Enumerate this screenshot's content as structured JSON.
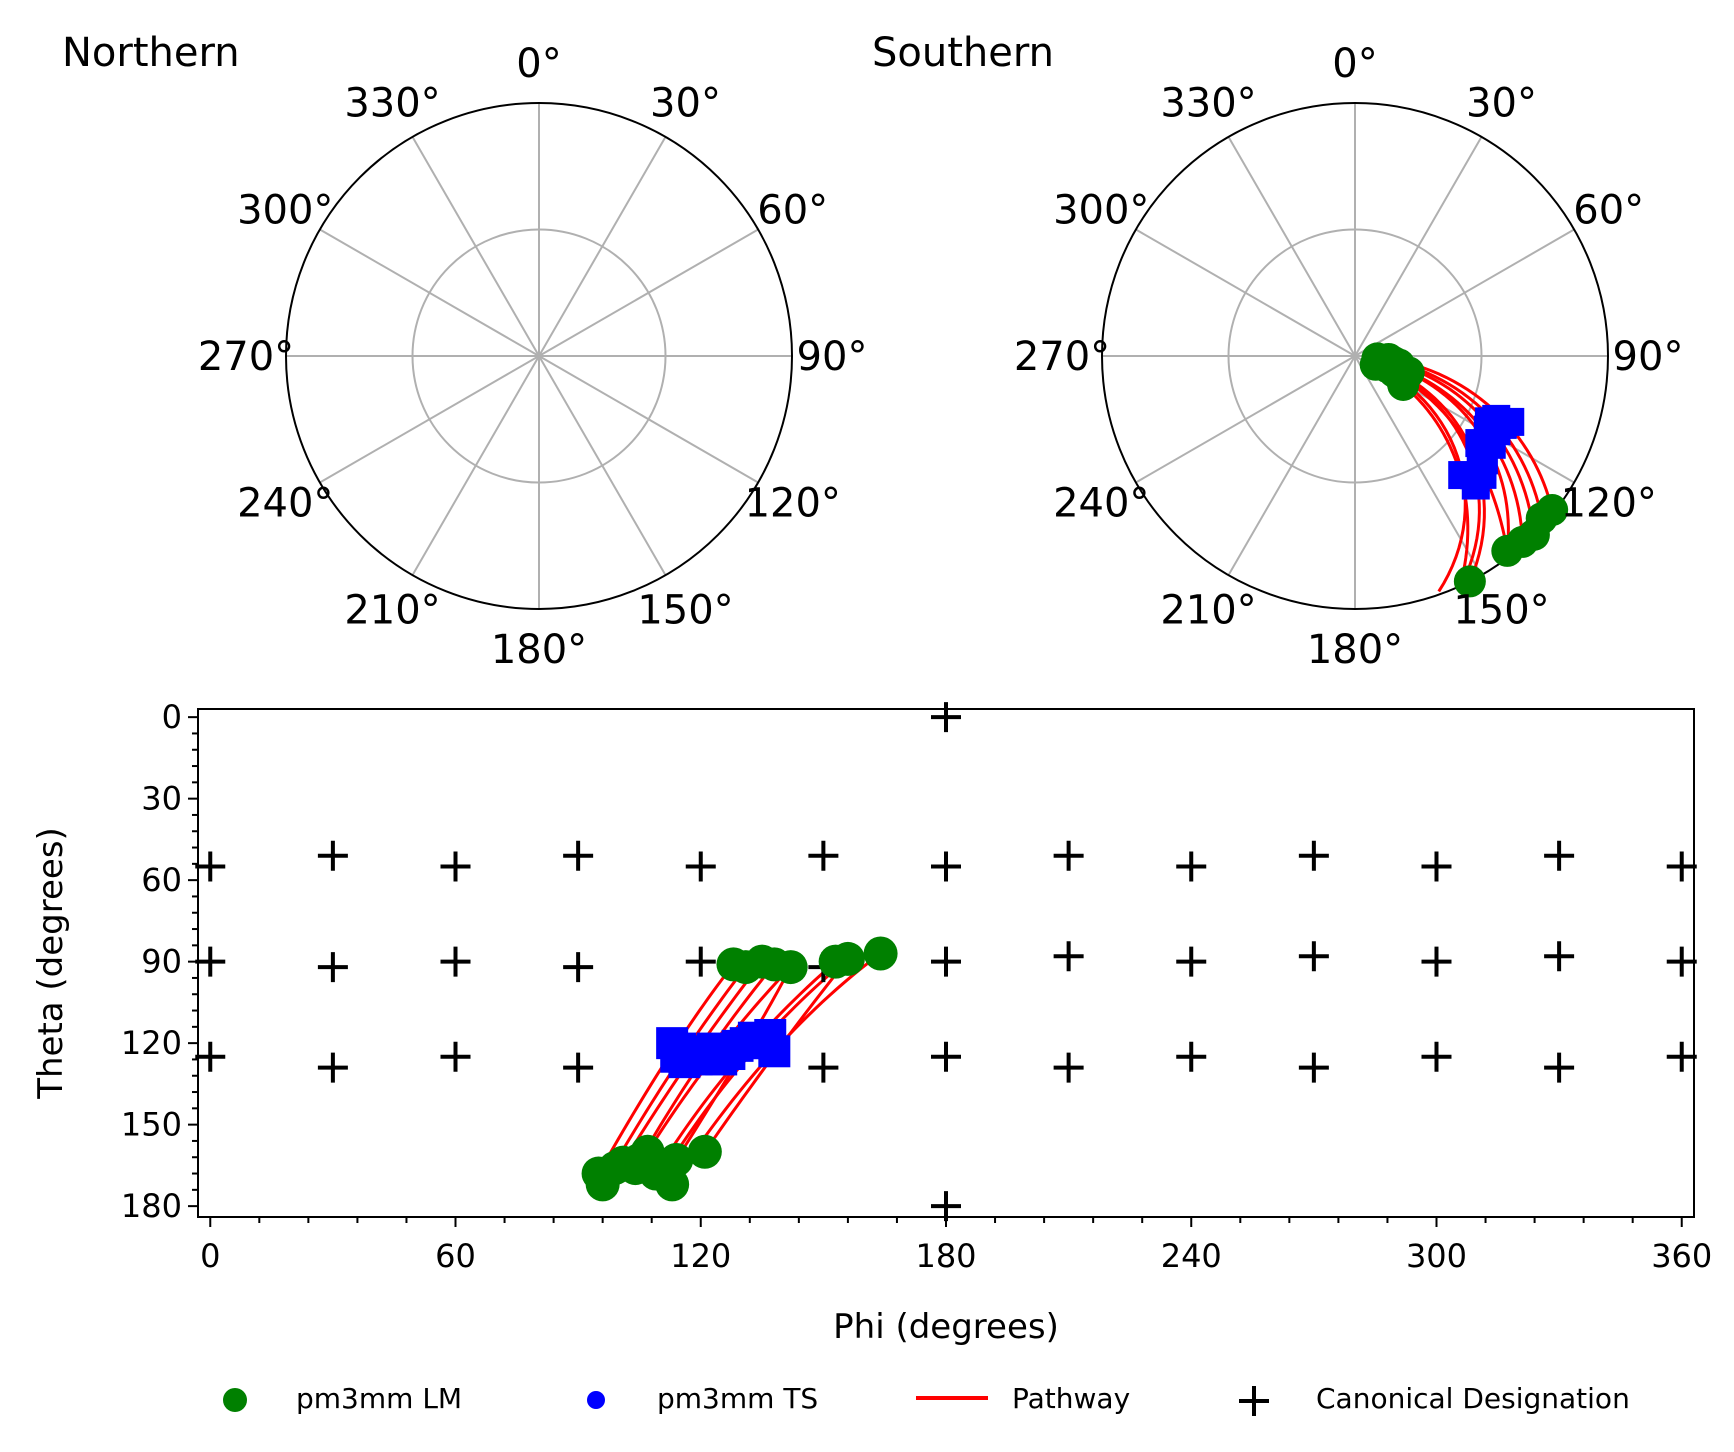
{
  "colors": {
    "lm": "#008000",
    "ts": "#0000ff",
    "pathway": "#ff0000",
    "canonical": "#000000",
    "grid": "#b0b0b0",
    "axis": "#000000"
  },
  "chart_data": [
    {
      "type": "scatter",
      "projection": "polar",
      "title": "Northern",
      "angle_labels": [
        "0°",
        "30°",
        "60°",
        "90°",
        "120°",
        "150°",
        "180°",
        "210°",
        "240°",
        "270°",
        "300°",
        "330°"
      ],
      "angle_direction": "clockwise, 0° at top",
      "grid": true,
      "radial_gridlines": 1,
      "series": []
    },
    {
      "type": "scatter",
      "projection": "polar",
      "title": "Southern",
      "angle_labels": [
        "0°",
        "30°",
        "60°",
        "90°",
        "120°",
        "150°",
        "180°",
        "210°",
        "240°",
        "270°",
        "300°",
        "330°"
      ],
      "angle_direction": "clockwise, 0° at top",
      "grid": true,
      "radial_gridlines": 1,
      "radial_value": "180 - theta",
      "radial_max": 90,
      "series_ref": "shared with phi-theta plot (theta > 90 points shown)"
    },
    {
      "type": "scatter",
      "xlabel": "Phi (degrees)",
      "ylabel": "Theta (degrees)",
      "xlim": [
        -3,
        363
      ],
      "ylim": [
        184,
        -3
      ],
      "x_ticks": [
        "0",
        "60",
        "120",
        "180",
        "240",
        "300",
        "360"
      ],
      "y_ticks": [
        "0",
        "30",
        "60",
        "90",
        "120",
        "150",
        "180"
      ],
      "series": [
        {
          "name": "pm3mm LM",
          "points": [
            [
              128,
              91
            ],
            [
              131,
              92
            ],
            [
              135,
              90
            ],
            [
              138,
              91
            ],
            [
              142,
              92
            ],
            [
              153,
              90
            ],
            [
              156,
              89
            ],
            [
              164,
              87
            ],
            [
              95,
              168
            ],
            [
              96,
              172
            ],
            [
              99,
              166
            ],
            [
              101,
              164
            ],
            [
              104,
              166
            ],
            [
              105,
              163
            ],
            [
              107,
              160
            ],
            [
              108,
              165
            ],
            [
              109,
              168
            ],
            [
              112,
              165
            ],
            [
              113,
              172
            ],
            [
              114,
              163
            ],
            [
              121,
              160
            ]
          ]
        },
        {
          "name": "pm3mm TS",
          "points": [
            [
              113,
              120
            ],
            [
              114,
              125
            ],
            [
              115,
              122
            ],
            [
              116,
              127
            ],
            [
              118,
              123
            ],
            [
              119,
              126
            ],
            [
              121,
              124
            ],
            [
              123,
              122
            ],
            [
              125,
              126
            ],
            [
              127,
              124
            ],
            [
              129,
              121
            ],
            [
              131,
              120
            ],
            [
              133,
              118
            ],
            [
              135,
              120
            ],
            [
              137,
              117
            ],
            [
              138,
              123
            ]
          ]
        },
        {
          "name": "Pathway",
          "paths": [
            {
              "from": [
                128,
                91
              ],
              "ts": [
                113,
                120
              ],
              "to": [
                95,
                168
              ]
            },
            {
              "from": [
                131,
                92
              ],
              "ts": [
                114,
                125
              ],
              "to": [
                96,
                172
              ]
            },
            {
              "from": [
                135,
                90
              ],
              "ts": [
                116,
                127
              ],
              "to": [
                101,
                164
              ]
            },
            {
              "from": [
                138,
                91
              ],
              "ts": [
                119,
                126
              ],
              "to": [
                104,
                166
              ]
            },
            {
              "from": [
                142,
                92
              ],
              "ts": [
                123,
                122
              ],
              "to": [
                107,
                160
              ]
            },
            {
              "from": [
                153,
                90
              ],
              "ts": [
                127,
                124
              ],
              "to": [
                109,
                168
              ]
            },
            {
              "from": [
                156,
                89
              ],
              "ts": [
                131,
                120
              ],
              "to": [
                112,
                165
              ]
            },
            {
              "from": [
                164,
                87
              ],
              "ts": [
                137,
                117
              ],
              "to": [
                113,
                172
              ]
            },
            {
              "from": [
                156,
                89
              ],
              "ts": [
                138,
                123
              ],
              "to": [
                121,
                160
              ]
            },
            {
              "from": [
                142,
                92
              ],
              "ts": [
                133,
                118
              ],
              "to": [
                114,
                163
              ]
            }
          ]
        },
        {
          "name": "Canonical Designation",
          "points": [
            [
              180,
              0
            ],
            [
              180,
              180
            ],
            [
              0,
              55
            ],
            [
              30,
              51
            ],
            [
              60,
              55
            ],
            [
              90,
              51
            ],
            [
              120,
              55
            ],
            [
              150,
              51
            ],
            [
              180,
              55
            ],
            [
              210,
              51
            ],
            [
              240,
              55
            ],
            [
              270,
              51
            ],
            [
              300,
              55
            ],
            [
              330,
              51
            ],
            [
              360,
              55
            ],
            [
              0,
              90
            ],
            [
              30,
              92
            ],
            [
              60,
              90
            ],
            [
              90,
              92
            ],
            [
              120,
              90
            ],
            [
              150,
              92
            ],
            [
              180,
              90
            ],
            [
              210,
              88
            ],
            [
              240,
              90
            ],
            [
              270,
              88
            ],
            [
              300,
              90
            ],
            [
              330,
              88
            ],
            [
              360,
              90
            ],
            [
              0,
              125
            ],
            [
              30,
              129
            ],
            [
              60,
              125
            ],
            [
              90,
              129
            ],
            [
              120,
              125
            ],
            [
              150,
              129
            ],
            [
              180,
              125
            ],
            [
              210,
              129
            ],
            [
              240,
              125
            ],
            [
              270,
              129
            ],
            [
              300,
              125
            ],
            [
              330,
              129
            ],
            [
              360,
              125
            ]
          ]
        }
      ],
      "legend": {
        "placement": "bottom",
        "entries": [
          "pm3mm LM",
          "pm3mm TS",
          "Pathway",
          "Canonical Designation"
        ]
      }
    }
  ]
}
